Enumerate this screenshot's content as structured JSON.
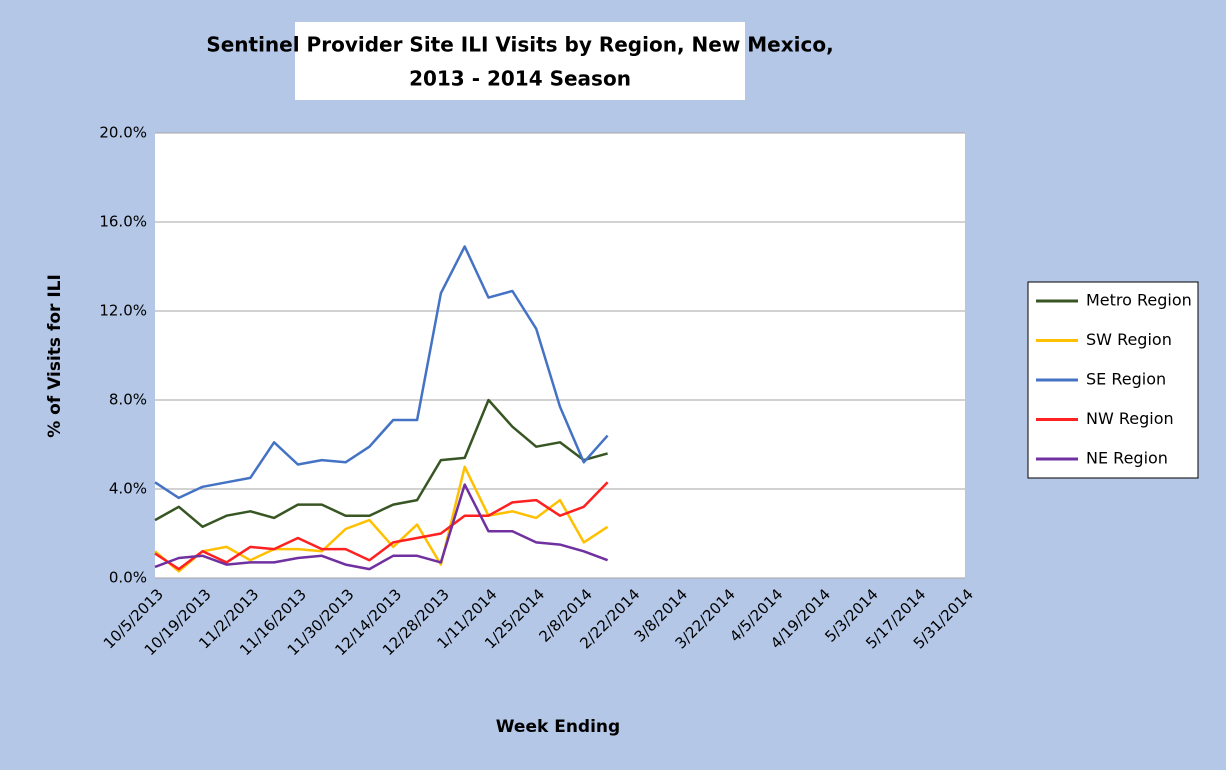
{
  "chart_data": {
    "type": "line",
    "title": "Sentinel Provider Site ILI Visits by Region, New Mexico,",
    "subtitle": "2013 - 2014 Season",
    "x_label": "Week Ending",
    "y_label": "% of Visits for ILI",
    "categories": [
      "10/5/2013",
      null,
      "10/19/2013",
      null,
      "11/2/2013",
      null,
      "11/16/2013",
      null,
      "11/30/2013",
      null,
      "12/14/2013",
      null,
      "12/28/2013",
      null,
      "1/11/2014",
      null,
      "1/25/2014",
      null,
      "2/8/2014",
      null,
      "2/22/2014",
      null,
      "3/8/2014",
      null,
      "3/22/2014",
      null,
      "4/5/2014",
      null,
      "4/19/2014",
      null,
      "5/3/2014",
      null,
      "5/17/2014",
      null,
      "5/31/2014"
    ],
    "ylim": [
      0,
      20
    ],
    "yticks": [
      {
        "value": 0,
        "label": "0.0%"
      },
      {
        "value": 4,
        "label": "4.0%"
      },
      {
        "value": 8,
        "label": "8.0%"
      },
      {
        "value": 12,
        "label": "12.0%"
      },
      {
        "value": 16,
        "label": "16.0%"
      },
      {
        "value": 20,
        "label": "20.0%"
      }
    ],
    "grid": true,
    "legend": "right",
    "series": [
      {
        "name": "Metro Region",
        "color": "#375623",
        "values": [
          2.6,
          3.2,
          2.3,
          2.8,
          3.0,
          2.7,
          3.3,
          3.3,
          2.8,
          2.8,
          3.3,
          3.5,
          5.3,
          5.4,
          8.0,
          6.8,
          5.9,
          6.1,
          5.3,
          5.6,
          null,
          null,
          null,
          null,
          null,
          null,
          null,
          null,
          null,
          null,
          null,
          null,
          null,
          null,
          null
        ]
      },
      {
        "name": "SW Region",
        "color": "#ffc000",
        "values": [
          1.2,
          0.3,
          1.2,
          1.4,
          0.8,
          1.3,
          1.3,
          1.2,
          2.2,
          2.6,
          1.4,
          2.4,
          0.6,
          5.0,
          2.8,
          3.0,
          2.7,
          3.5,
          1.6,
          2.3,
          null,
          null,
          null,
          null,
          null,
          null,
          null,
          null,
          null,
          null,
          null,
          null,
          null,
          null,
          null
        ]
      },
      {
        "name": "SE Region",
        "color": "#4472c4",
        "values": [
          4.3,
          3.6,
          4.1,
          4.3,
          4.5,
          6.1,
          5.1,
          5.3,
          5.2,
          5.9,
          7.1,
          7.1,
          12.8,
          14.9,
          12.6,
          12.9,
          11.2,
          7.7,
          5.2,
          6.4,
          null,
          null,
          null,
          null,
          null,
          null,
          null,
          null,
          null,
          null,
          null,
          null,
          null,
          null,
          null
        ]
      },
      {
        "name": "NW Region",
        "color": "#ff2020",
        "values": [
          1.1,
          0.4,
          1.2,
          0.7,
          1.4,
          1.3,
          1.8,
          1.3,
          1.3,
          0.8,
          1.6,
          1.8,
          2.0,
          2.8,
          2.8,
          3.4,
          3.5,
          2.8,
          3.2,
          4.3,
          null,
          null,
          null,
          null,
          null,
          null,
          null,
          null,
          null,
          null,
          null,
          null,
          null,
          null,
          null
        ]
      },
      {
        "name": "NE Region",
        "color": "#7030a0",
        "values": [
          0.5,
          0.9,
          1.0,
          0.6,
          0.7,
          0.7,
          0.9,
          1.0,
          0.6,
          0.4,
          1.0,
          1.0,
          0.7,
          4.2,
          2.1,
          2.1,
          1.6,
          1.5,
          1.2,
          0.8,
          null,
          null,
          null,
          null,
          null,
          null,
          null,
          null,
          null,
          null,
          null,
          null,
          null,
          null,
          null
        ]
      }
    ]
  }
}
